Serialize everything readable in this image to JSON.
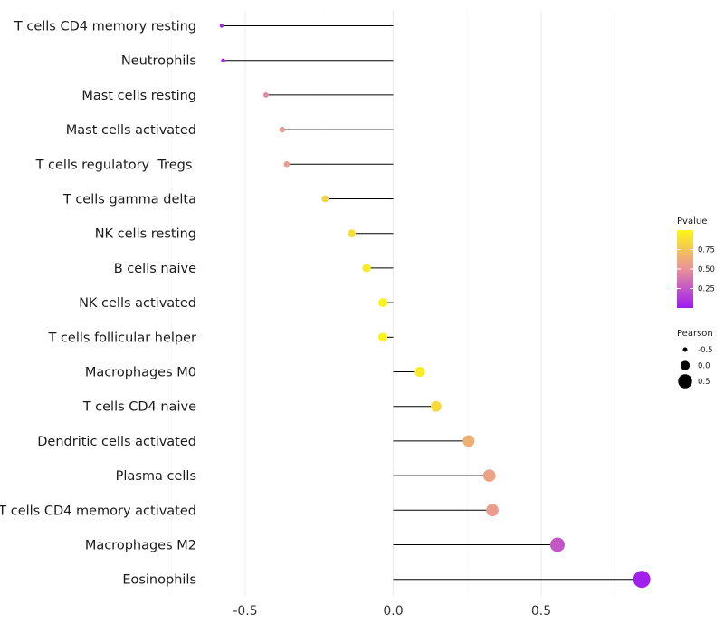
{
  "chart_data": {
    "type": "lollipop",
    "title": "",
    "xlabel": "",
    "ylabel": "",
    "xlim": [
      -0.7,
      0.9
    ],
    "x_ticks": [
      -0.5,
      0.0,
      0.5
    ],
    "x_tick_labels": [
      "-0.5",
      "0.0",
      "0.5"
    ],
    "grid": true,
    "categories": [
      "T cells CD4 memory resting",
      "Neutrophils",
      "Mast cells resting",
      "Mast cells activated",
      "T cells regulatory  Tregs ",
      "T cells gamma delta",
      "NK cells resting",
      "B cells naive",
      "NK cells activated",
      "T cells follicular helper",
      "Macrophages M0",
      "T cells CD4 naive",
      "Dendritic cells activated",
      "Plasma cells",
      "T cells CD4 memory activated",
      "Macrophages M2",
      "Eosinophils"
    ],
    "pearson": [
      -0.58,
      -0.575,
      -0.43,
      -0.375,
      -0.36,
      -0.23,
      -0.14,
      -0.09,
      -0.035,
      -0.035,
      0.09,
      0.145,
      0.255,
      0.325,
      0.335,
      0.555,
      0.84
    ],
    "pvalue": [
      0.02,
      0.02,
      0.45,
      0.55,
      0.55,
      0.82,
      0.88,
      0.94,
      0.98,
      0.98,
      0.95,
      0.85,
      0.65,
      0.58,
      0.55,
      0.25,
      0.02
    ],
    "legend": {
      "color": {
        "title": "Pvalue",
        "ticks": [
          0.25,
          0.5,
          0.75
        ],
        "tick_labels": [
          "0.25",
          "0.50",
          "0.75"
        ],
        "range": [
          0.0,
          1.0
        ],
        "low_color": "#9d1cf0",
        "mid_color": "#e8929a",
        "high_color": "#fdf716"
      },
      "size": {
        "title": "Pearson",
        "values": [
          -0.5,
          0.0,
          0.5
        ],
        "labels": [
          "-0.5",
          "0.0",
          "0.5"
        ]
      },
      "placement": "right"
    }
  }
}
